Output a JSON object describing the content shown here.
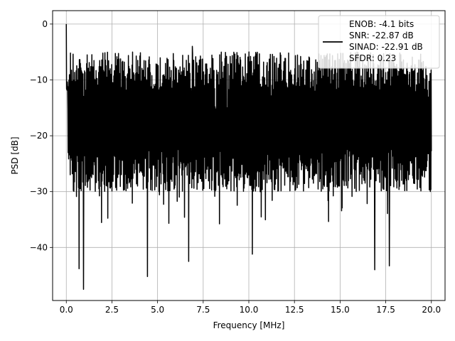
{
  "chart_data": {
    "type": "line",
    "title": "",
    "xlabel": "Frequency [MHz]",
    "ylabel": "PSD [dB]",
    "xlim": [
      -0.75,
      20.75
    ],
    "ylim": [
      -49.5,
      2.4
    ],
    "grid": true,
    "legend_position": "top-right",
    "x_ticks": [
      0.0,
      2.5,
      5.0,
      7.5,
      10.0,
      12.5,
      15.0,
      17.5,
      20.0
    ],
    "x_tick_labels": [
      "0.0",
      "2.5",
      "5.0",
      "7.5",
      "10.0",
      "12.5",
      "15.0",
      "17.5",
      "20.0"
    ],
    "y_ticks": [
      0,
      -10,
      -20,
      -30,
      -40
    ],
    "y_tick_labels": [
      "0",
      "−10",
      "−20",
      "−30",
      "−40"
    ],
    "series": [
      {
        "name": "ENOB: -4.1 bits\nSNR: -22.87 dB\nSINAD: -22.91 dB\nSFDR: 0.23",
        "color": "#000000",
        "x_range": [
          0,
          20
        ],
        "notable_points": [
          {
            "x": 0.0,
            "y": 0.0
          },
          {
            "x": 0.95,
            "y": -47.5
          },
          {
            "x": 0.7,
            "y": -43.8
          },
          {
            "x": 4.45,
            "y": -45.2
          },
          {
            "x": 6.7,
            "y": -42.5
          },
          {
            "x": 10.2,
            "y": -41.2
          },
          {
            "x": 16.9,
            "y": -44.0
          },
          {
            "x": 17.7,
            "y": -43.3
          },
          {
            "x": 6.9,
            "y": -4.0
          },
          {
            "x": 10.0,
            "y": -5.0
          }
        ],
        "typical_peak_range": [
          -12,
          -5
        ],
        "typical_floor_range": [
          -30,
          -22
        ]
      }
    ],
    "legend_lines": [
      "ENOB: -4.1 bits",
      "SNR: -22.87 dB",
      "SINAD: -22.91 dB",
      "SFDR: 0.23"
    ]
  }
}
